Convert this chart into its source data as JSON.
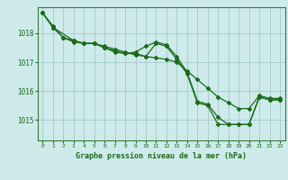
{
  "title": "Graphe pression niveau de la mer (hPa)",
  "background_color": "#ceeaea",
  "grid_color": "#aacece",
  "line_color": "#1a6b1a",
  "xlim": [
    -0.5,
    23.5
  ],
  "ylim": [
    1014.3,
    1018.9
  ],
  "yticks": [
    1015,
    1016,
    1017,
    1018
  ],
  "xticks": [
    0,
    1,
    2,
    3,
    4,
    5,
    6,
    7,
    8,
    9,
    10,
    11,
    12,
    13,
    14,
    15,
    16,
    17,
    18,
    19,
    20,
    21,
    22,
    23
  ],
  "series": [
    {
      "x": [
        0,
        1,
        2,
        3,
        4,
        5,
        6,
        7,
        8,
        9,
        10,
        11,
        12,
        13,
        14,
        15,
        16,
        17,
        18,
        19,
        20,
        21,
        22,
        23
      ],
      "y": [
        1018.7,
        1018.25,
        1017.85,
        1017.75,
        1017.65,
        1017.65,
        1017.55,
        1017.45,
        1017.35,
        1017.25,
        1017.2,
        1017.15,
        1017.1,
        1017.0,
        1016.7,
        1016.4,
        1016.1,
        1015.8,
        1015.6,
        1015.4,
        1015.4,
        1015.85,
        1015.75,
        1015.75
      ]
    },
    {
      "x": [
        0,
        1,
        2,
        3,
        4,
        5,
        6,
        7,
        8,
        9,
        10,
        11,
        12,
        13,
        14,
        15,
        16,
        17,
        18,
        19,
        20,
        21,
        22,
        23
      ],
      "y": [
        1018.7,
        1018.2,
        1017.85,
        1017.7,
        1017.65,
        1017.65,
        1017.5,
        1017.4,
        1017.3,
        1017.35,
        1017.55,
        1017.7,
        1017.6,
        1017.2,
        1016.65,
        1015.65,
        1015.55,
        1015.1,
        1014.85,
        1014.85,
        1014.85,
        1015.8,
        1015.7,
        1015.7
      ]
    },
    {
      "x": [
        0,
        1,
        3,
        4,
        5,
        6,
        7,
        8,
        9,
        10,
        11,
        12,
        13,
        14,
        15,
        16,
        17,
        18,
        19,
        20,
        21,
        22,
        23
      ],
      "y": [
        1018.7,
        1018.2,
        1017.75,
        1017.65,
        1017.65,
        1017.5,
        1017.35,
        1017.3,
        1017.3,
        1017.2,
        1017.65,
        1017.55,
        1017.1,
        1016.6,
        1015.6,
        1015.5,
        1014.85,
        1014.85,
        1014.85,
        1014.85,
        1015.8,
        1015.7,
        1015.7
      ]
    }
  ]
}
